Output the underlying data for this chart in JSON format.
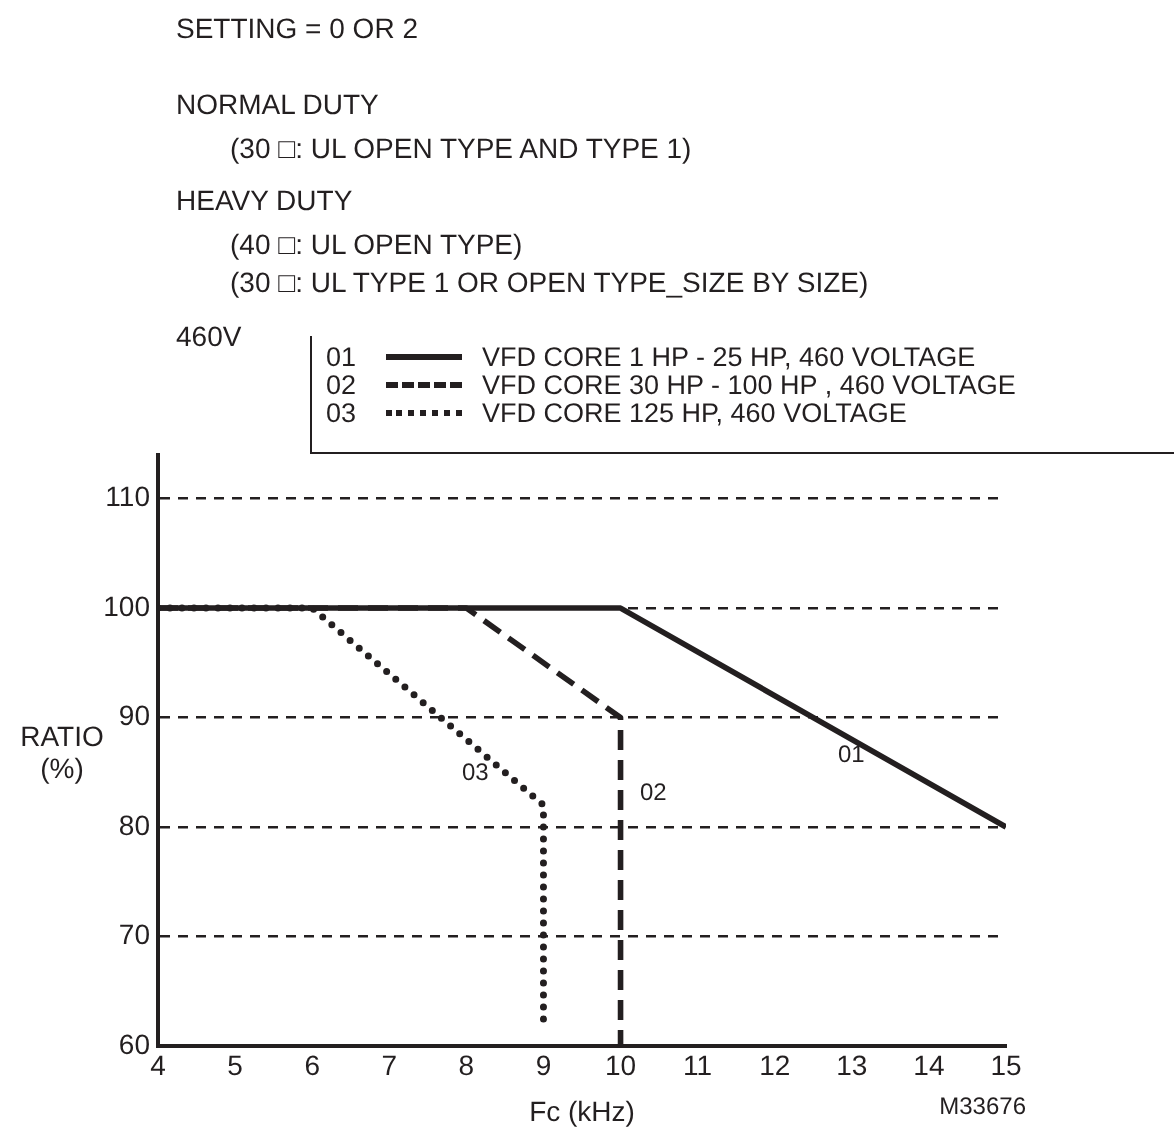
{
  "chart_data": {
    "type": "line",
    "title": "SETTING = 0 OR 2",
    "xlabel": "Fc (kHz)",
    "ylabel": "RATIO (%)",
    "xlim": [
      4,
      15
    ],
    "xticks": [
      4,
      5,
      6,
      7,
      8,
      9,
      10,
      11,
      12,
      13,
      14,
      15
    ],
    "ylim": [
      60,
      114
    ],
    "yticks": [
      60,
      70,
      80,
      90,
      100,
      110
    ],
    "grid": "y",
    "legend": "top right",
    "series": [
      {
        "name": "VFD CORE 1 HP - 25 HP, 460 VOLTAGE",
        "color": "#231f20",
        "line_style": "solid",
        "x": [
          4,
          10,
          15
        ],
        "values": [
          100,
          100,
          80
        ]
      },
      {
        "name": "VFD CORE 30 HP - 100 HP , 460 VOLTAGE",
        "color": "#231f20",
        "line_style": "dashed",
        "x": [
          4,
          8,
          10,
          10
        ],
        "values": [
          100,
          100,
          90,
          60
        ]
      },
      {
        "name": "VFD CORE 125 HP, 460 VOLTAGE",
        "color": "#231f20",
        "line_style": "dotted",
        "x": [
          4,
          6,
          9,
          9
        ],
        "values": [
          100,
          100,
          82,
          62
        ]
      }
    ],
    "annotations": [
      "NORMAL DUTY",
      "(30 □:  UL OPEN TYPE AND TYPE 1)",
      "HEAVY DUTY",
      "(40 □:  UL OPEN TYPE)",
      "(30 □:  UL TYPE 1 OR OPEN TYPE_SIZE BY SIZE)",
      "460V",
      "01",
      "02",
      "03",
      "M33676"
    ]
  }
}
